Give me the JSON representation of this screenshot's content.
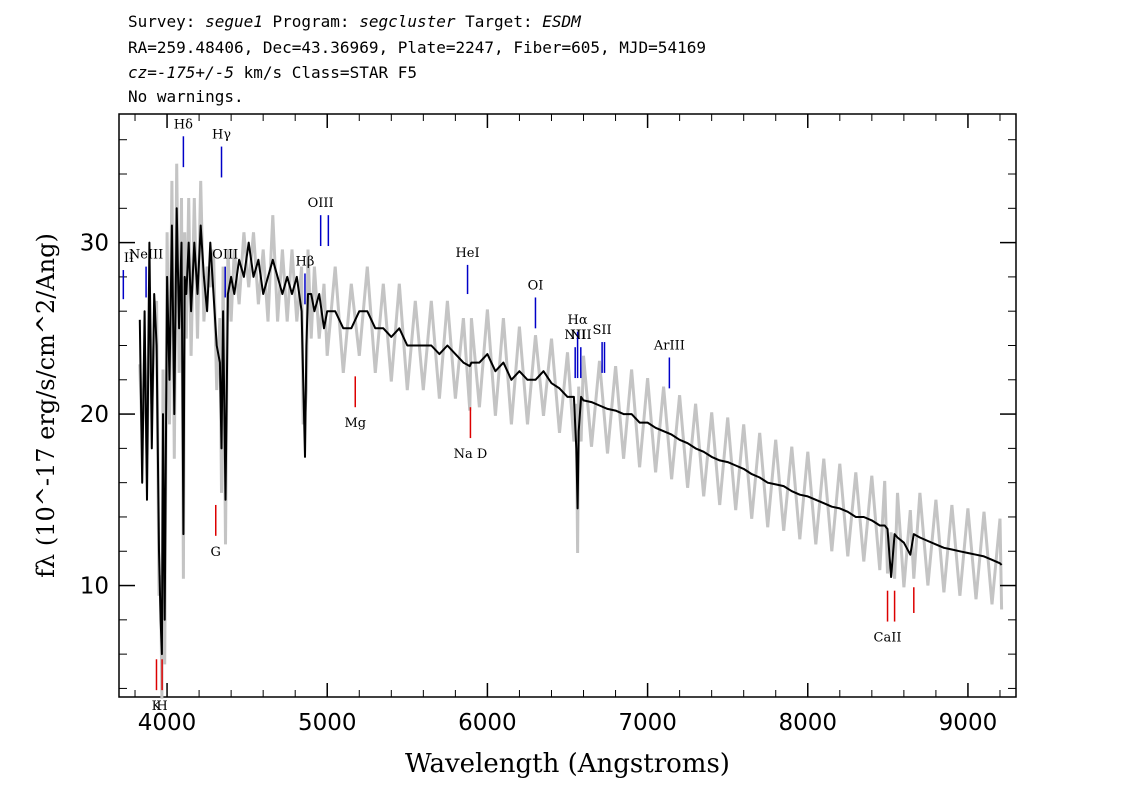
{
  "header": {
    "line1": {
      "survey_label": "Survey: ",
      "survey": "segue1",
      "program_label": " Program: ",
      "program": "segcluster",
      "target_label": " Target: ",
      "target": "ESDM"
    },
    "line2": "RA=259.48406, Dec=43.36969, Plate=2247, Fiber=605, MJD=54169",
    "line3": {
      "cz": "cz=-175+/-5",
      "rest": " km/s Class=STAR F5"
    },
    "line4": "No warnings."
  },
  "chart_data": {
    "type": "line",
    "xlabel": "Wavelength (Angstroms)",
    "ylabel": "fλ (10^-17 erg/s/cm^2/Ang)",
    "xlim": [
      3700,
      9300
    ],
    "ylim": [
      3.5,
      37.5
    ],
    "xticks": [
      4000,
      5000,
      6000,
      7000,
      8000,
      9000
    ],
    "yticks": [
      10,
      20,
      30
    ],
    "series": [
      {
        "color": "#000000",
        "x": [
          3830,
          3845,
          3860,
          3875,
          3890,
          3905,
          3920,
          3935,
          3950,
          3960,
          3968,
          3975,
          3985,
          4000,
          4015,
          4030,
          4045,
          4060,
          4075,
          4090,
          4102,
          4110,
          4120,
          4135,
          4150,
          4170,
          4190,
          4210,
          4230,
          4250,
          4270,
          4290,
          4310,
          4330,
          4340,
          4350,
          4365,
          4380,
          4400,
          4420,
          4450,
          4480,
          4510,
          4540,
          4570,
          4600,
          4630,
          4660,
          4690,
          4720,
          4750,
          4780,
          4810,
          4840,
          4850,
          4861,
          4870,
          4880,
          4900,
          4920,
          4950,
          4980,
          5000,
          5050,
          5100,
          5150,
          5200,
          5250,
          5300,
          5350,
          5400,
          5450,
          5500,
          5550,
          5600,
          5650,
          5700,
          5750,
          5800,
          5850,
          5890,
          5900,
          5950,
          6000,
          6050,
          6100,
          6150,
          6200,
          6250,
          6300,
          6350,
          6400,
          6450,
          6500,
          6540,
          6555,
          6563,
          6570,
          6585,
          6600,
          6650,
          6700,
          6750,
          6800,
          6850,
          6900,
          6950,
          7000,
          7050,
          7100,
          7150,
          7200,
          7250,
          7300,
          7350,
          7400,
          7450,
          7500,
          7550,
          7600,
          7650,
          7700,
          7750,
          7800,
          7850,
          7900,
          7950,
          8000,
          8050,
          8100,
          8150,
          8200,
          8250,
          8300,
          8350,
          8400,
          8450,
          8480,
          8498,
          8520,
          8542,
          8560,
          8600,
          8640,
          8662,
          8700,
          8750,
          8800,
          8850,
          8900,
          8950,
          9000,
          9050,
          9100,
          9150,
          9200,
          9210
        ],
        "y": [
          25.5,
          16,
          26,
          15,
          30,
          18,
          27,
          24,
          12,
          8,
          6,
          20,
          8,
          28,
          22,
          31,
          20,
          32,
          25,
          30,
          13,
          28,
          27,
          30,
          26,
          30,
          27,
          31,
          28,
          26,
          30,
          27,
          24,
          23,
          18,
          26,
          15,
          27,
          28,
          27,
          29,
          28,
          30,
          28,
          29,
          27,
          28,
          29,
          28,
          27,
          28,
          27,
          28,
          26,
          22,
          17.5,
          24,
          27,
          27,
          26,
          27,
          25,
          26,
          26,
          25,
          25,
          26,
          26,
          25,
          25,
          24.5,
          25,
          24,
          24,
          24,
          24,
          23.5,
          24,
          23.5,
          23,
          22.8,
          23,
          23,
          23.5,
          22.5,
          23,
          22,
          22.5,
          22,
          22,
          22.5,
          21.8,
          21.5,
          21,
          21,
          18,
          14.5,
          19,
          21,
          20.8,
          20.7,
          20.5,
          20.3,
          20.2,
          20,
          20,
          19.5,
          19.5,
          19.2,
          19,
          18.8,
          18.5,
          18.3,
          18,
          17.8,
          17.5,
          17.3,
          17.2,
          17,
          16.8,
          16.5,
          16.3,
          16,
          15.9,
          15.8,
          15.5,
          15.3,
          15.2,
          15,
          14.8,
          14.6,
          14.5,
          14.3,
          14,
          14,
          13.8,
          13.5,
          13.5,
          13.3,
          10.5,
          13,
          12.8,
          12.5,
          11.8,
          13,
          12.8,
          12.6,
          12.4,
          12.2,
          12.1,
          12,
          11.9,
          11.8,
          11.7,
          11.5,
          11.3,
          11.2
        ]
      }
    ],
    "lines": [
      {
        "label": "NeIII",
        "x": 3869,
        "color": "#0000c8",
        "y1": 26.8,
        "y2": 28.6
      },
      {
        "label": "Hδ",
        "x": 4102,
        "color": "#0000c8",
        "y1": 34.4,
        "y2": 36.2
      },
      {
        "label": "Hγ",
        "x": 4340,
        "color": "#0000c8",
        "y1": 33.8,
        "y2": 35.6
      },
      {
        "label": "OIII",
        "x": 4363,
        "color": "#0000c8",
        "y1": 26.8,
        "y2": 28.6
      },
      {
        "label": "Hβ",
        "x": 4861,
        "color": "#0000c8",
        "y1": 26.4,
        "y2": 28.2
      },
      {
        "label": "OIII",
        "x": 4959,
        "color": "#0000c8",
        "y1": 29.8,
        "y2": 31.6
      },
      {
        "label": "",
        "x": 5007,
        "color": "#0000c8",
        "y1": 29.8,
        "y2": 31.6
      },
      {
        "label": "HeI",
        "x": 5876,
        "color": "#0000c8",
        "y1": 27,
        "y2": 28.7
      },
      {
        "label": "OI",
        "x": 6300,
        "color": "#0000c8",
        "y1": 25,
        "y2": 26.8
      },
      {
        "label": "NII",
        "x": 6548,
        "color": "#0000c8",
        "y1": 22.1,
        "y2": 23.9
      },
      {
        "label": "Hα",
        "x": 6563,
        "color": "#0000c8",
        "y1": 22.1,
        "y2": 24.8
      },
      {
        "label": "NII",
        "x": 6583,
        "color": "#0000c8",
        "y1": 22.1,
        "y2": 23.9
      },
      {
        "label": "SII",
        "x": 6716,
        "color": "#0000c8",
        "y1": 22.4,
        "y2": 24.2
      },
      {
        "label": "",
        "x": 6731,
        "color": "#0000c8",
        "y1": 22.4,
        "y2": 24.2
      },
      {
        "label": "ArIII",
        "x": 7136,
        "color": "#0000c8",
        "y1": 21.5,
        "y2": 23.3
      },
      {
        "label": "II",
        "x": 3727,
        "color": "#0000c8",
        "y1": 26.7,
        "y2": 28.4
      },
      {
        "label": "K",
        "x": 3934,
        "color": "#dc0000",
        "y1": 3.9,
        "y2": 5.7
      },
      {
        "label": "H",
        "x": 3969,
        "color": "#dc0000",
        "y1": 3.9,
        "y2": 5.7
      },
      {
        "label": "G",
        "x": 4304,
        "color": "#dc0000",
        "y1": 12.9,
        "y2": 14.7
      },
      {
        "label": "Mg",
        "x": 5175,
        "color": "#dc0000",
        "y1": 20.4,
        "y2": 22.2
      },
      {
        "label": "Na D",
        "x": 5894,
        "color": "#dc0000",
        "y1": 18.6,
        "y2": 20.4
      },
      {
        "label": "CaII",
        "x": 8498,
        "color": "#dc0000",
        "y1": 7.9,
        "y2": 9.7
      },
      {
        "label": "",
        "x": 8542,
        "color": "#dc0000",
        "y1": 7.9,
        "y2": 9.7
      },
      {
        "label": "",
        "x": 8662,
        "color": "#dc0000",
        "y1": 8.4,
        "y2": 9.9
      }
    ]
  }
}
